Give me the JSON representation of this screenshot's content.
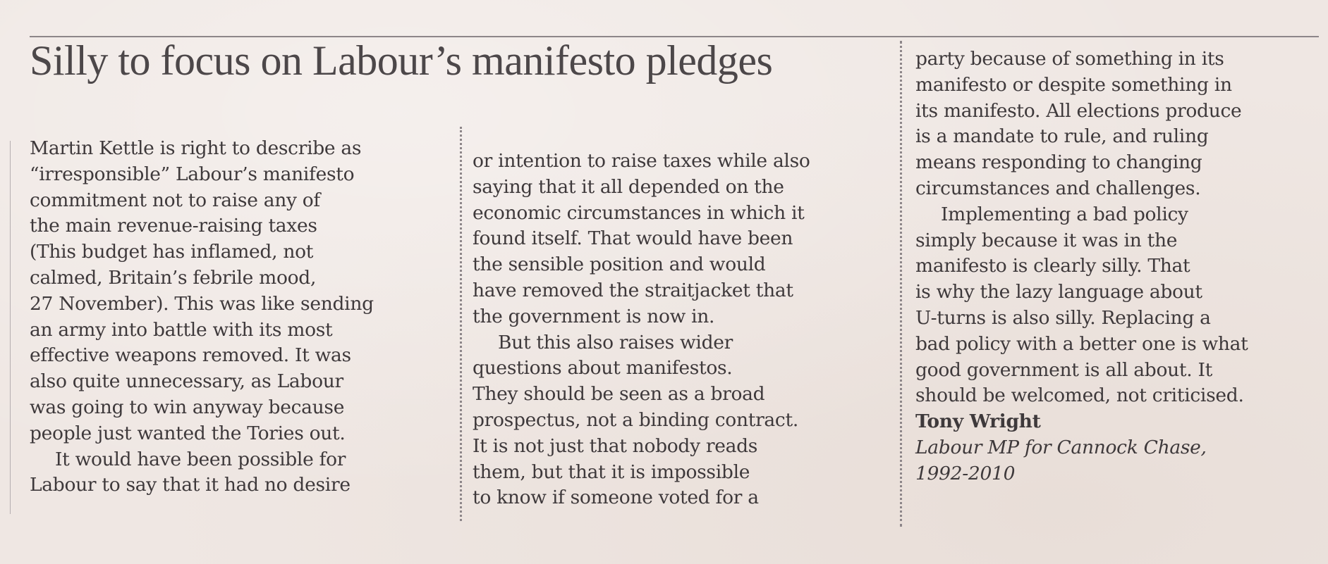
{
  "article": {
    "headline": "Silly to focus on Labour’s manifesto pledges",
    "columns": [
      {
        "paragraphs": [
          {
            "indent": false,
            "lines": [
              "Martin Kettle is right to describe as",
              "“irresponsible” Labour’s manifesto",
              "commitment not to raise any of",
              "the main revenue-raising taxes",
              "(This budget has inflamed, not",
              "calmed, Britain’s febrile mood,",
              "27 November). This was like sending",
              "an army into battle with its most",
              "effective weapons removed. It was",
              "also quite unnecessary, as Labour",
              "was going to win anyway because",
              "people just wanted the Tories out."
            ]
          },
          {
            "indent": true,
            "lines": [
              "It would have been possible for",
              "Labour to say that it had no desire"
            ]
          }
        ]
      },
      {
        "paragraphs": [
          {
            "indent": false,
            "lines": [
              "or intention to raise taxes while also",
              "saying that it all depended on the",
              "economic circumstances in which it",
              "found itself. That would have been",
              "the sensible position and would",
              "have removed the straitjacket that",
              "the government is now in."
            ]
          },
          {
            "indent": true,
            "lines": [
              "But this also raises wider",
              "questions about manifestos.",
              "They should be seen as a broad",
              "prospectus, not a binding contract.",
              "It is not just that nobody reads",
              "them, but that it is impossible",
              "to know if someone voted for a"
            ]
          }
        ]
      },
      {
        "paragraphs": [
          {
            "indent": false,
            "lines": [
              "party because of something in its",
              "manifesto or despite something in",
              "its manifesto. All elections produce",
              "is a mandate to rule, and ruling",
              "means responding to changing",
              "circumstances and challenges."
            ]
          },
          {
            "indent": true,
            "lines": [
              "Implementing a bad policy",
              "simply because it was in the",
              "manifesto is clearly silly. That",
              "is why the lazy language about",
              "U-turns is also silly. Replacing a",
              "bad policy with a better one is what",
              "good government is all about. It",
              "should be welcomed, not criticised."
            ]
          }
        ]
      }
    ],
    "signature": {
      "name": "Tony Wright",
      "role_lines": [
        "Labour MP for Cannock Chase,",
        "1992-2010"
      ]
    }
  }
}
